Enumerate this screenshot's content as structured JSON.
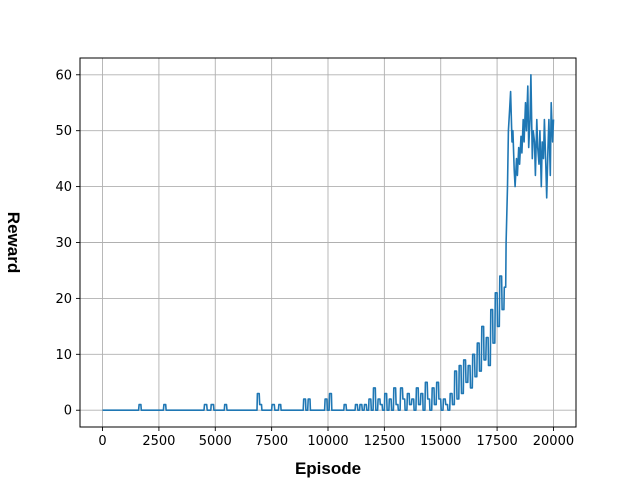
{
  "chart_data": {
    "type": "line",
    "title": "",
    "xlabel": "Episode",
    "ylabel": "Reward",
    "xlim": [
      -1000,
      21000
    ],
    "ylim": [
      -3,
      63
    ],
    "grid": true,
    "line_color": "#1f77b4",
    "grid_color": "#b0b0b0",
    "x_ticks": [
      0,
      2500,
      5000,
      7500,
      10000,
      12500,
      15000,
      17500,
      20000
    ],
    "y_ticks": [
      0,
      10,
      20,
      30,
      40,
      50,
      60
    ],
    "series": [
      {
        "x": [
          0,
          1600,
          1620,
          1700,
          1720,
          2700,
          2720,
          2800,
          2820,
          4500,
          4520,
          4620,
          4640,
          4800,
          4820,
          4920,
          4940,
          5400,
          5420,
          5500,
          5520,
          6850,
          6870,
          6950,
          6970,
          7050,
          7070,
          7500,
          7520,
          7620,
          7640,
          7800,
          7820,
          7900,
          7920,
          8900,
          8920,
          9000,
          9020,
          9100,
          9120,
          9200,
          9220,
          9300,
          9320,
          9850,
          9870,
          9950,
          9970,
          10050,
          10070,
          10150,
          10170,
          10700,
          10720,
          10800,
          10820,
          11200,
          11220,
          11300,
          11320,
          11400,
          11420,
          11500,
          11520,
          11600,
          11620,
          11700,
          11720,
          11800,
          11820,
          11900,
          11920,
          12000,
          12020,
          12100,
          12120,
          12200,
          12220,
          12300,
          12320,
          12400,
          12420,
          12500,
          12520,
          12600,
          12620,
          12700,
          12720,
          12800,
          12820,
          12900,
          12920,
          13000,
          13020,
          13100,
          13120,
          13200,
          13220,
          13300,
          13320,
          13400,
          13420,
          13500,
          13520,
          13600,
          13620,
          13700,
          13720,
          13800,
          13820,
          13900,
          13920,
          14000,
          14020,
          14100,
          14120,
          14200,
          14220,
          14300,
          14320,
          14400,
          14420,
          14500,
          14520,
          14600,
          14620,
          14700,
          14720,
          14800,
          14820,
          14900,
          14920,
          15000,
          15020,
          15100,
          15120,
          15200,
          15220,
          15300,
          15320,
          15400,
          15420,
          15500,
          15520,
          15600,
          15620,
          15700,
          15720,
          15800,
          15820,
          15900,
          15920,
          16000,
          16020,
          16100,
          16120,
          16200,
          16220,
          16300,
          16320,
          16400,
          16420,
          16500,
          16520,
          16600,
          16620,
          16700,
          16720,
          16800,
          16820,
          16900,
          16920,
          17000,
          17020,
          17100,
          17120,
          17200,
          17220,
          17300,
          17320,
          17400,
          17420,
          17500,
          17520,
          17600,
          17620,
          17700,
          17720,
          17800,
          17820,
          17880,
          17900,
          17960,
          18000,
          18060,
          18100,
          18160,
          18200,
          18260,
          18300,
          18360,
          18400,
          18460,
          18500,
          18560,
          18600,
          18660,
          18700,
          18760,
          18800,
          18860,
          18900,
          18960,
          19000,
          19060,
          19100,
          19160,
          19200,
          19260,
          19300,
          19360,
          19400,
          19460,
          19500,
          19560,
          19600,
          19660,
          19700,
          19760,
          19800,
          19860,
          19900,
          19960,
          20000
        ],
        "y": [
          0,
          0,
          1,
          1,
          0,
          0,
          1,
          1,
          0,
          0,
          1,
          1,
          0,
          0,
          1,
          1,
          0,
          0,
          1,
          1,
          0,
          0,
          3,
          3,
          1,
          1,
          0,
          0,
          1,
          1,
          0,
          0,
          1,
          1,
          0,
          0,
          2,
          2,
          0,
          0,
          2,
          2,
          0,
          0,
          0,
          0,
          2,
          2,
          0,
          0,
          3,
          3,
          0,
          0,
          1,
          1,
          0,
          0,
          1,
          1,
          0,
          0,
          1,
          1,
          0,
          0,
          1,
          1,
          0,
          0,
          2,
          2,
          0,
          0,
          4,
          4,
          0,
          0,
          2,
          2,
          1,
          1,
          0,
          0,
          3,
          3,
          0,
          0,
          2,
          2,
          0,
          0,
          4,
          4,
          1,
          1,
          0,
          0,
          4,
          4,
          2,
          2,
          0,
          0,
          3,
          3,
          1,
          1,
          2,
          2,
          0,
          0,
          4,
          4,
          1,
          1,
          3,
          3,
          0,
          0,
          5,
          5,
          2,
          2,
          0,
          0,
          4,
          4,
          1,
          1,
          5,
          5,
          2,
          2,
          0,
          0,
          2,
          2,
          1,
          1,
          0,
          0,
          3,
          3,
          1,
          1,
          7,
          7,
          2,
          2,
          8,
          8,
          3,
          3,
          9,
          9,
          5,
          5,
          8,
          8,
          4,
          4,
          10,
          10,
          6,
          6,
          12,
          12,
          7,
          7,
          15,
          15,
          9,
          9,
          13,
          13,
          8,
          8,
          18,
          18,
          12,
          12,
          21,
          21,
          15,
          15,
          24,
          24,
          18,
          18,
          22,
          22,
          30,
          40,
          50,
          54,
          57,
          48,
          50,
          43,
          40,
          45,
          42,
          47,
          44,
          49,
          46,
          52,
          48,
          55,
          50,
          58,
          47,
          52,
          60,
          45,
          50,
          48,
          42,
          52,
          47,
          44,
          50,
          40,
          48,
          45,
          52,
          44,
          38,
          47,
          52,
          42,
          55,
          48,
          52
        ]
      }
    ]
  }
}
